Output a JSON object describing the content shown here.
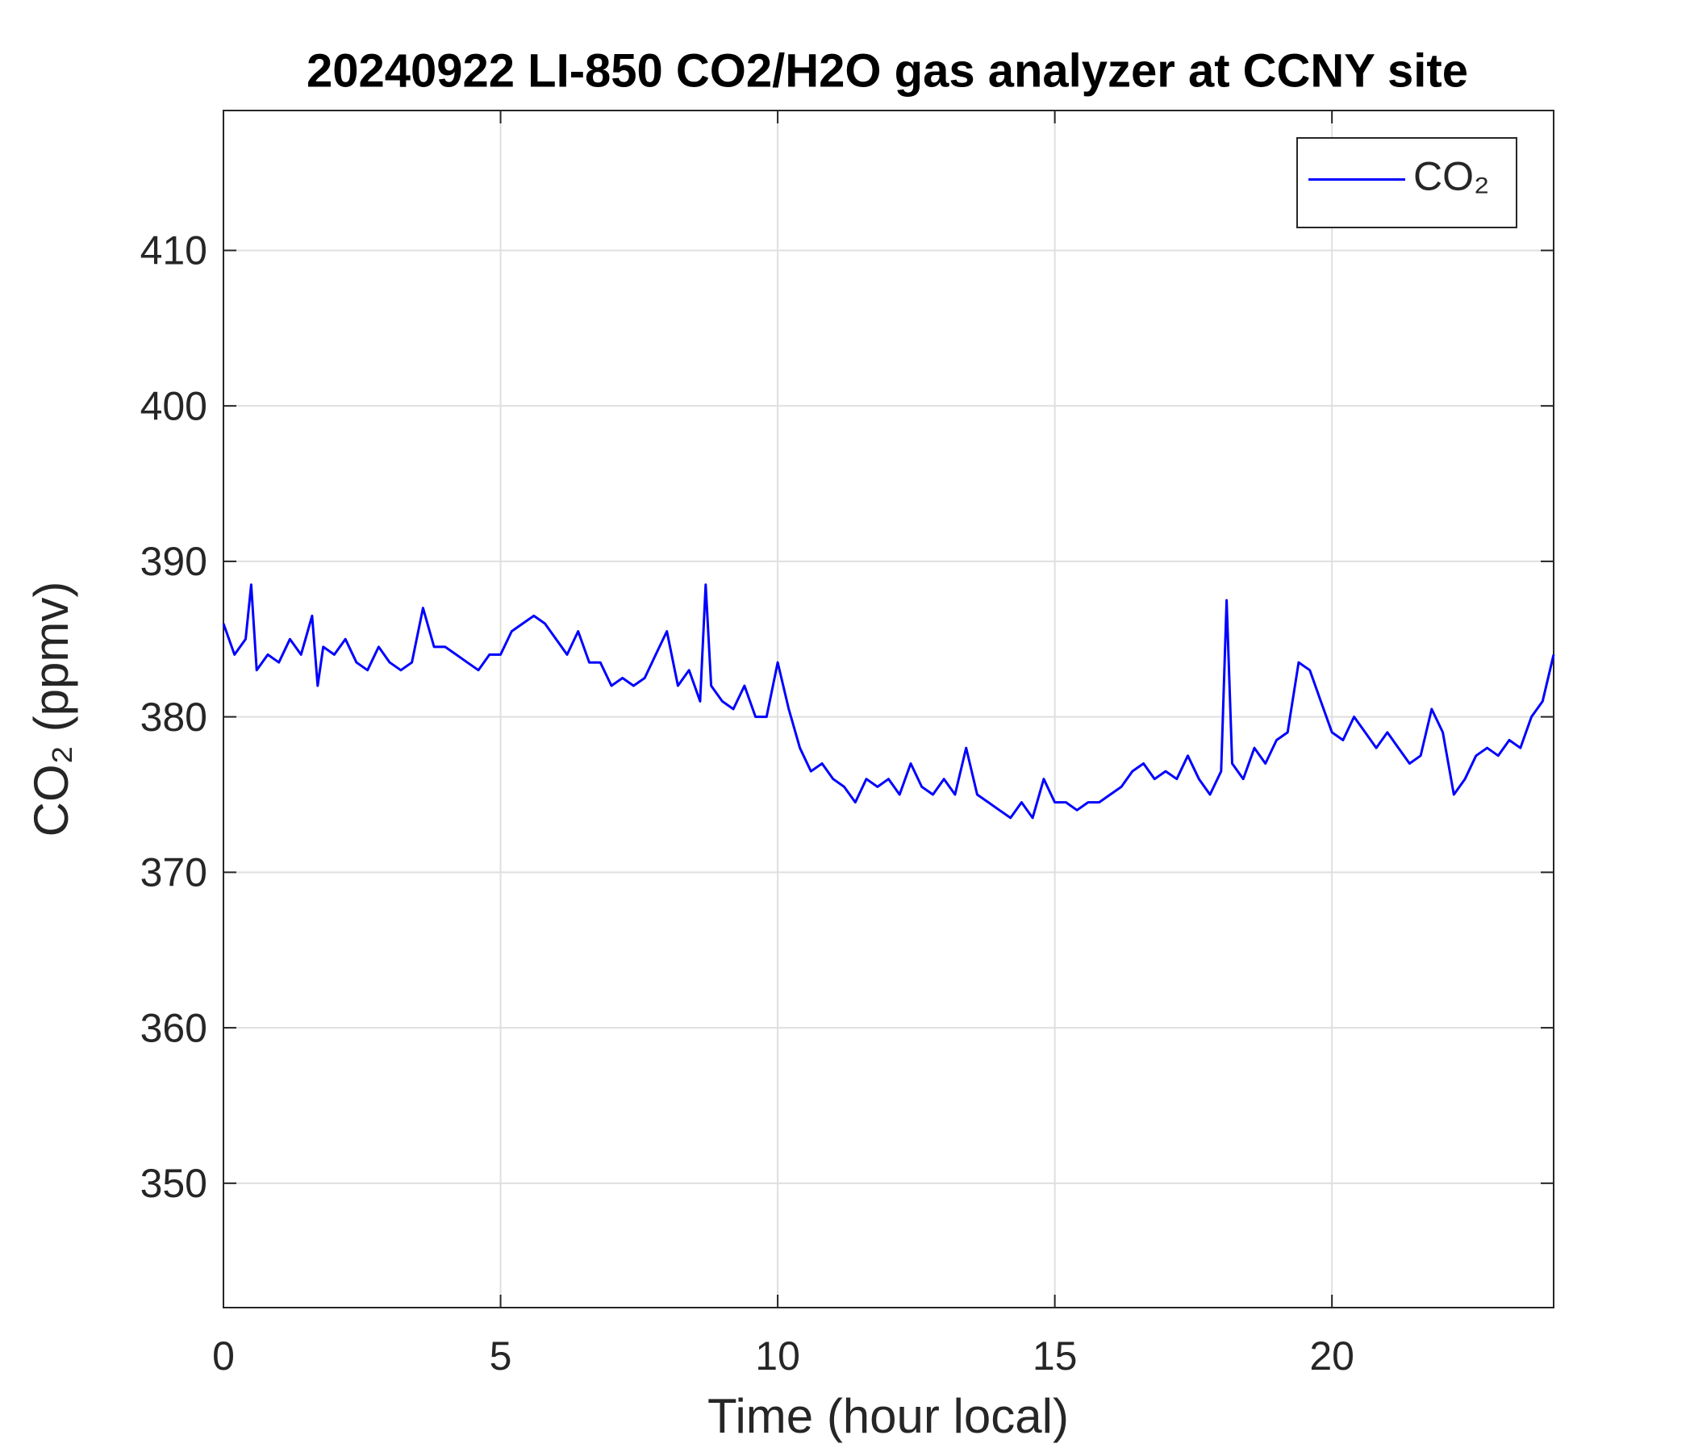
{
  "chart_data": {
    "type": "line",
    "title": "20240922 LI-850 CO2/H2O gas analyzer at CCNY site",
    "xlabel": "Time (hour local)",
    "ylabel": "CO₂ (ppmv)",
    "xlim": [
      0,
      24
    ],
    "xticks": [
      0,
      5,
      10,
      15,
      20
    ],
    "ylim": [
      342,
      419
    ],
    "yticks": [
      350,
      360,
      370,
      380,
      390,
      400,
      410
    ],
    "grid": true,
    "legend": "northeast",
    "x": [
      0,
      0.2,
      0.4,
      0.5,
      0.6,
      0.8,
      1.0,
      1.2,
      1.4,
      1.6,
      1.7,
      1.8,
      2.0,
      2.2,
      2.4,
      2.6,
      2.8,
      3.0,
      3.2,
      3.4,
      3.6,
      3.8,
      4.0,
      4.2,
      4.4,
      4.6,
      4.8,
      5.0,
      5.2,
      5.4,
      5.6,
      5.8,
      6.0,
      6.2,
      6.4,
      6.6,
      6.8,
      7.0,
      7.2,
      7.4,
      7.6,
      7.8,
      8.0,
      8.2,
      8.4,
      8.6,
      8.7,
      8.8,
      9.0,
      9.2,
      9.4,
      9.6,
      9.8,
      10.0,
      10.2,
      10.4,
      10.6,
      10.8,
      11.0,
      11.2,
      11.4,
      11.6,
      11.8,
      12.0,
      12.2,
      12.4,
      12.6,
      12.8,
      13.0,
      13.2,
      13.4,
      13.6,
      13.8,
      14.0,
      14.2,
      14.4,
      14.6,
      14.8,
      15.0,
      15.2,
      15.4,
      15.6,
      15.8,
      16.0,
      16.2,
      16.4,
      16.6,
      16.8,
      17.0,
      17.2,
      17.4,
      17.6,
      17.8,
      18.0,
      18.1,
      18.2,
      18.4,
      18.6,
      18.8,
      19.0,
      19.2,
      19.4,
      19.6,
      19.8,
      20.0,
      20.2,
      20.4,
      20.6,
      20.8,
      21.0,
      21.2,
      21.4,
      21.6,
      21.8,
      22.0,
      22.2,
      22.4,
      22.6,
      22.8,
      23.0,
      23.2,
      23.4,
      23.6,
      23.8,
      24.0
    ],
    "series": [
      {
        "name": "CO₂",
        "color": "#0000ff",
        "values": [
          386,
          384,
          385,
          388.5,
          383,
          384,
          383.5,
          385,
          384,
          386.5,
          382,
          384.5,
          384,
          385,
          383.5,
          383,
          384.5,
          383.5,
          383,
          383.5,
          387,
          384.5,
          384.5,
          384,
          383.5,
          383,
          384,
          384,
          385.5,
          386,
          386.5,
          386,
          385,
          384,
          385.5,
          383.5,
          383.5,
          382,
          382.5,
          382,
          382.5,
          384,
          385.5,
          382,
          383,
          381,
          388.5,
          382,
          381,
          380.5,
          382,
          380,
          380,
          383.5,
          380.5,
          378,
          376.5,
          377,
          376,
          375.5,
          374.5,
          376,
          375.5,
          376,
          375,
          377,
          375.5,
          375,
          376,
          375,
          378,
          375,
          374.5,
          374,
          373.5,
          374.5,
          373.5,
          376,
          374.5,
          374.5,
          374,
          374.5,
          374.5,
          375,
          375.5,
          376.5,
          377,
          376,
          376.5,
          376,
          377.5,
          376,
          375,
          376.5,
          387.5,
          377,
          376,
          378,
          377,
          378.5,
          379,
          383.5,
          383,
          381,
          379,
          378.5,
          380,
          379,
          378,
          379,
          378,
          377,
          377.5,
          380.5,
          379,
          375,
          376,
          377.5,
          378,
          377.5,
          378.5,
          378,
          380,
          381,
          384
        ]
      }
    ]
  }
}
